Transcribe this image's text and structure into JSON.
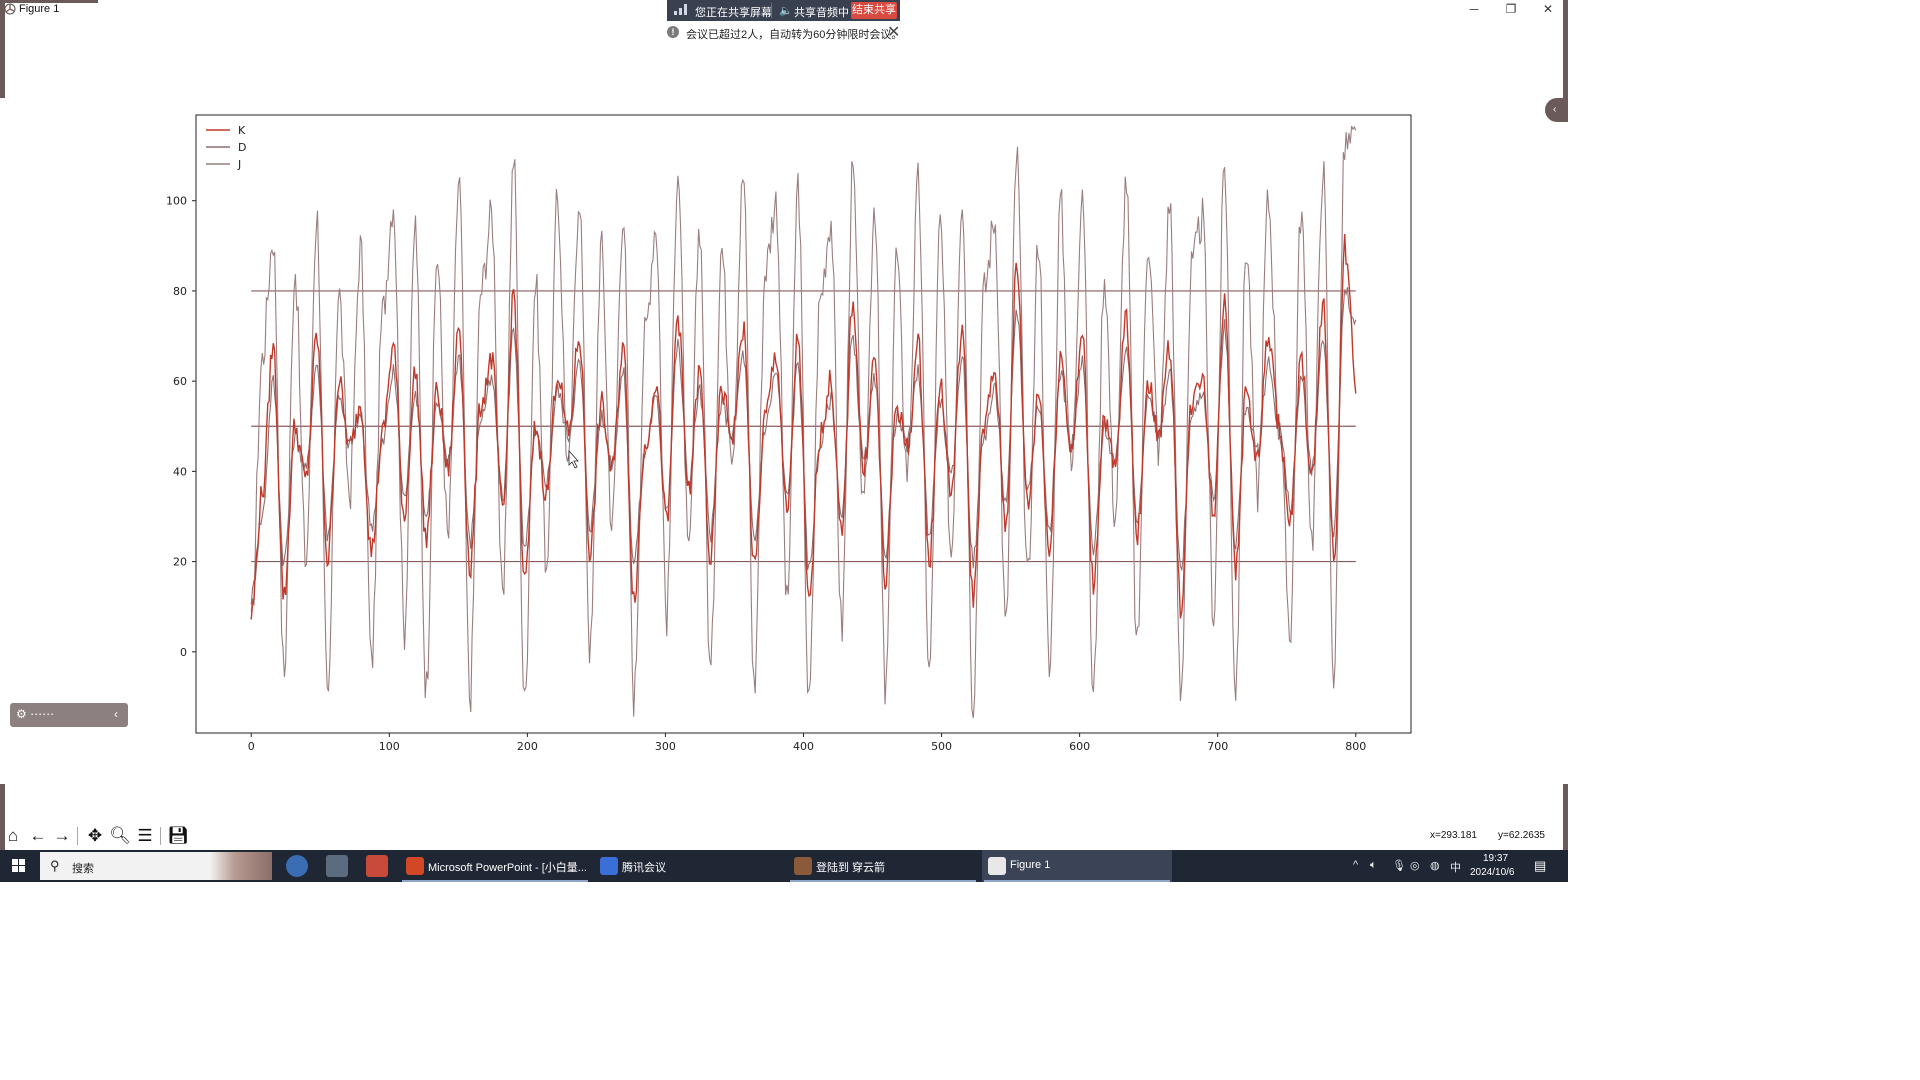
{
  "window": {
    "title": "Figure 1",
    "controls": {
      "minimize": "─",
      "maximize": "❐",
      "close": "✕"
    }
  },
  "share_bar": {
    "status": "您正在共享屏幕",
    "audio": "共享音频中",
    "end_label": "结束共享"
  },
  "notice": {
    "text": "会议已超过2人，自动转为60分钟限时会议。"
  },
  "chart_data": {
    "type": "line",
    "title": "",
    "xlabel": "",
    "ylabel": "",
    "xlim": [
      -40,
      840
    ],
    "ylim": [
      -18,
      119
    ],
    "xticks": [
      0,
      100,
      200,
      300,
      400,
      500,
      600,
      700,
      800
    ],
    "yticks": [
      0,
      20,
      40,
      60,
      80,
      100
    ],
    "grid": false,
    "legend_position": "top-left",
    "legend": [
      "K",
      "D",
      "J"
    ],
    "colors": {
      "K": "#c0392b",
      "D": "#8e6f6f",
      "J": "#9a7e7e",
      "reference": "#8b5a5a"
    },
    "reference_lines": [
      {
        "y": 80,
        "x_start": 0,
        "x_end": 800
      },
      {
        "y": 50,
        "x_start": 0,
        "x_end": 800
      },
      {
        "y": 20,
        "x_start": 0,
        "x_end": 800
      }
    ],
    "n_points": 800,
    "series": [
      {
        "name": "K",
        "x_start": 0,
        "x_end": 800,
        "values": [
          8,
          35,
          68,
          12,
          50,
          38,
          70,
          20,
          60,
          45,
          55,
          22,
          48,
          68,
          30,
          62,
          25,
          58,
          40,
          72,
          18,
          55,
          65,
          30,
          80,
          15,
          50,
          35,
          62,
          48,
          70,
          22,
          55,
          40,
          68,
          12,
          45,
          60,
          28,
          75,
          35,
          62,
          20,
          58,
          48,
          72,
          18,
          52,
          66,
          30,
          70,
          10,
          48,
          60,
          25,
          78,
          40,
          65,
          15,
          55,
          45,
          68,
          20,
          60,
          35,
          72,
          12,
          50,
          62,
          28,
          85,
          32,
          58,
          22,
          66,
          45,
          70,
          15,
          52,
          40,
          75,
          25,
          60,
          48,
          68,
          10,
          55,
          62,
          30,
          80,
          18,
          58,
          42,
          70,
          50,
          28,
          65,
          38,
          78,
          20,
          90,
          60
        ]
      },
      {
        "name": "D",
        "x_start": 0,
        "x_end": 800,
        "values": [
          12,
          30,
          60,
          20,
          48,
          40,
          64,
          26,
          56,
          46,
          52,
          28,
          46,
          62,
          34,
          58,
          30,
          55,
          42,
          66,
          24,
          52,
          60,
          34,
          72,
          22,
          48,
          38,
          58,
          48,
          64,
          28,
          52,
          42,
          62,
          20,
          44,
          56,
          32,
          68,
          38,
          58,
          26,
          55,
          48,
          66,
          24,
          50,
          62,
          34,
          64,
          18,
          46,
          56,
          30,
          70,
          42,
          60,
          22,
          52,
          46,
          62,
          26,
          56,
          38,
          66,
          20,
          48,
          58,
          32,
          76,
          36,
          55,
          28,
          62,
          46,
          64,
          22,
          50,
          42,
          68,
          30,
          56,
          48,
          62,
          18,
          52,
          58,
          34,
          72,
          24,
          55,
          44,
          64,
          50,
          32,
          60,
          40,
          70,
          26,
          80,
          72
        ]
      },
      {
        "name": "J",
        "x_start": 0,
        "x_end": 800,
        "values": [
          5,
          65,
          92,
          -5,
          85,
          20,
          97,
          -12,
          80,
          35,
          90,
          -3,
          75,
          100,
          5,
          95,
          -8,
          88,
          25,
          105,
          -10,
          80,
          97,
          10,
          110,
          -12,
          82,
          20,
          100,
          40,
          102,
          0,
          90,
          28,
          98,
          -10,
          70,
          95,
          8,
          108,
          20,
          95,
          -5,
          90,
          45,
          106,
          -8,
          85,
          100,
          10,
          104,
          -12,
          78,
          96,
          5,
          106,
          30,
          100,
          -10,
          88,
          40,
          104,
          -5,
          95,
          22,
          102,
          -11,
          80,
          96,
          5,
          110,
          15,
          92,
          -5,
          100,
          40,
          104,
          -10,
          84,
          30,
          105,
          0,
          92,
          45,
          100,
          -10,
          85,
          96,
          8,
          108,
          -8,
          90,
          35,
          100,
          50,
          5,
          98,
          25,
          108,
          -5,
          112,
          113
        ]
      }
    ]
  },
  "mini_toolbar": {
    "left_glyph": "⚙ ⋯⋯",
    "right_glyph": "‹"
  },
  "toolbar": {
    "icons": [
      "home-icon",
      "back-icon",
      "forward-icon",
      "pan-icon",
      "zoom-icon",
      "configure-subplots-icon",
      "save-icon"
    ],
    "coord_x": "x=293.181",
    "coord_y": "y=62.2635"
  },
  "taskbar": {
    "search_placeholder": "搜索",
    "apps": [
      {
        "label": "Microsoft PowerPoint - [小白量...",
        "color": "#d24726"
      },
      {
        "label": "腾讯会议",
        "color": "#3b6fd8"
      },
      {
        "label": "登陆到 穿云箭",
        "color": "#8a5a3a"
      },
      {
        "label": "Figure 1",
        "color": "#e8e8e8"
      }
    ],
    "tray": {
      "ime": "中",
      "time": "19:37",
      "date": "2024/10/6"
    }
  }
}
